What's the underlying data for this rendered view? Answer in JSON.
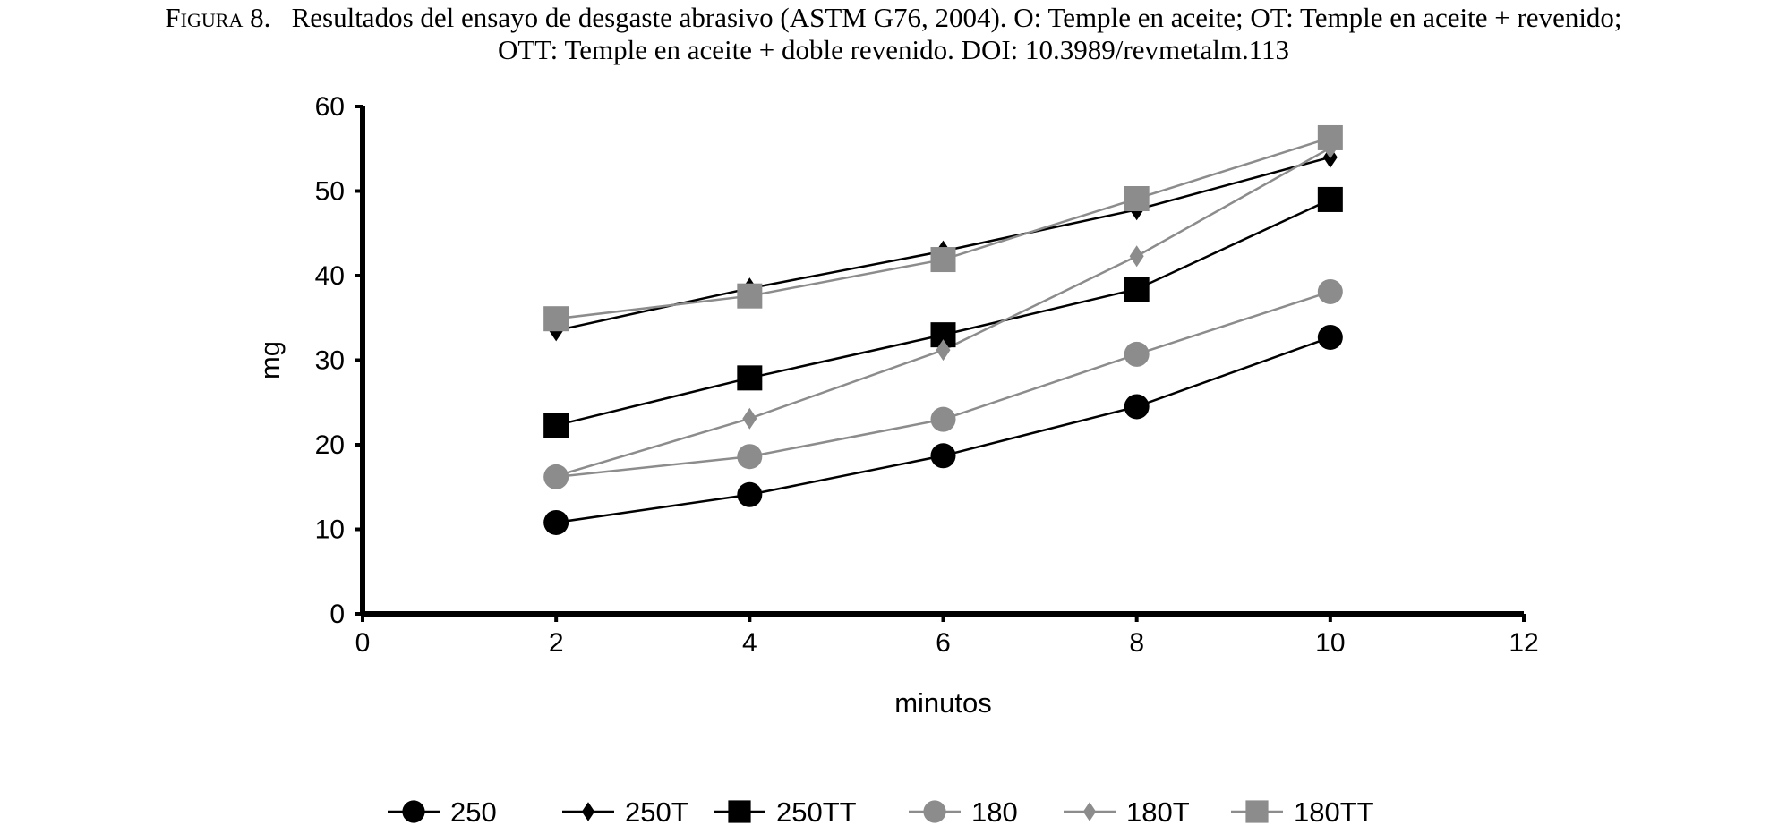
{
  "caption": {
    "figure_label": "Figura 8.",
    "line1": "Resultados del ensayo de desgaste abrasivo (ASTM G76, 2004). O: Temple en aceite; OT: Temple en aceite + revenido;",
    "line2": "OTT: Temple en aceite + doble revenido. DOI: 10.3989/revmetalm.113"
  },
  "chart_data": {
    "type": "line",
    "title": "",
    "xlabel": "minutos",
    "ylabel": "mg",
    "xlim": [
      0,
      12
    ],
    "ylim": [
      0,
      60
    ],
    "xticks": [
      0,
      2,
      4,
      6,
      8,
      10,
      12
    ],
    "yticks": [
      0,
      10,
      20,
      30,
      40,
      50,
      60
    ],
    "grid": false,
    "legend_position": "bottom",
    "x": [
      2,
      4,
      6,
      8,
      10
    ],
    "series": [
      {
        "name": "250",
        "values": [
          10.8,
          14.1,
          18.7,
          24.5,
          32.7
        ],
        "color": "#000000",
        "marker": "circle"
      },
      {
        "name": "250T",
        "values": [
          33.5,
          38.5,
          42.9,
          47.8,
          54.0
        ],
        "color": "#000000",
        "marker": "diamond"
      },
      {
        "name": "250TT",
        "values": [
          22.3,
          27.9,
          33.0,
          38.4,
          49.0
        ],
        "color": "#000000",
        "marker": "square"
      },
      {
        "name": "180",
        "values": [
          16.2,
          18.6,
          23.0,
          30.7,
          38.1
        ],
        "color": "#8c8c8c",
        "marker": "circle"
      },
      {
        "name": "180T",
        "values": [
          16.3,
          23.1,
          31.2,
          42.3,
          55.1
        ],
        "color": "#8c8c8c",
        "marker": "diamond"
      },
      {
        "name": "180TT",
        "values": [
          34.9,
          37.6,
          41.9,
          49.1,
          56.3
        ],
        "color": "#8c8c8c",
        "marker": "square"
      }
    ]
  }
}
